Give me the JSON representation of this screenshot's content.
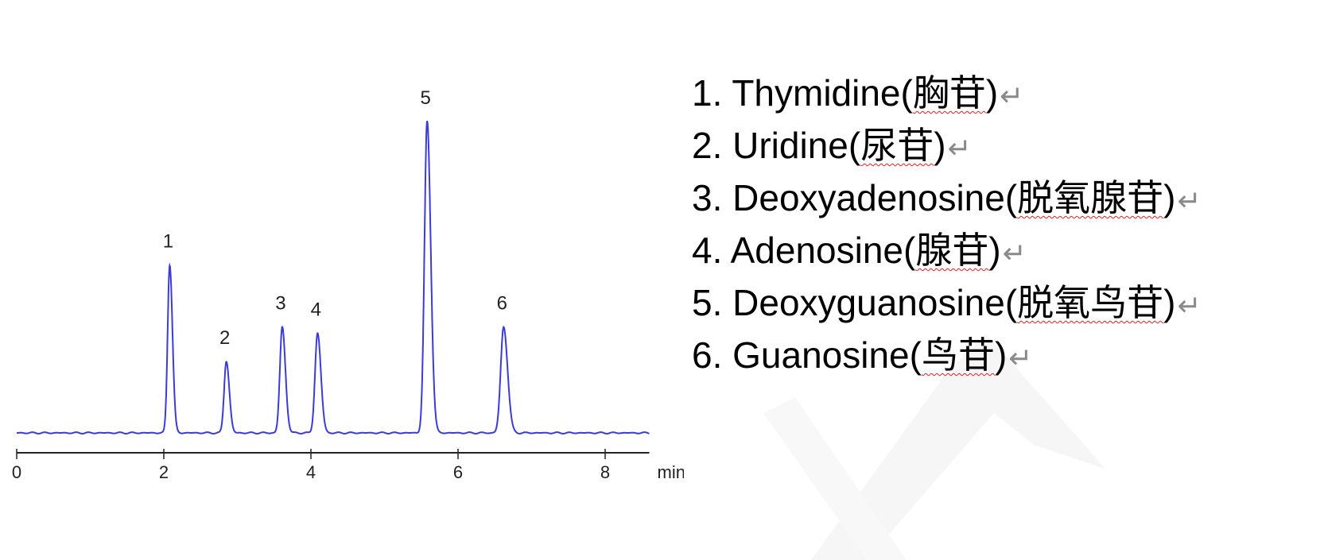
{
  "chart_data": {
    "type": "line",
    "title": "",
    "xlabel": "min",
    "ylabel": "",
    "xlim": [
      0,
      8.6
    ],
    "xticks": [
      0,
      2,
      4,
      6,
      8
    ],
    "grid": false,
    "y_axis_shown": false,
    "line_color": "#3b3bd6",
    "axis_color": "#222222",
    "peaks": [
      {
        "label": "1",
        "retention_time": 2.08,
        "relative_height": 54,
        "width_sigma": 0.028
      },
      {
        "label": "2",
        "retention_time": 2.85,
        "relative_height": 23,
        "width_sigma": 0.03
      },
      {
        "label": "3",
        "retention_time": 3.61,
        "relative_height": 34,
        "width_sigma": 0.032
      },
      {
        "label": "4",
        "retention_time": 4.09,
        "relative_height": 32,
        "width_sigma": 0.034
      },
      {
        "label": "5",
        "retention_time": 5.58,
        "relative_height": 100,
        "width_sigma": 0.036
      },
      {
        "label": "6",
        "retention_time": 6.62,
        "relative_height": 34,
        "width_sigma": 0.04
      }
    ]
  },
  "legend": {
    "return_mark": "↵",
    "underline_color": "#e02020",
    "items": [
      {
        "prefix": "1. Thymidine(",
        "cn": "胸苷",
        "suffix": ")"
      },
      {
        "prefix": "2. Uridine(",
        "cn": "尿苷",
        "suffix": ")"
      },
      {
        "prefix": "3. Deoxyadenosine(",
        "cn": "脱氧腺苷",
        "suffix": ")"
      },
      {
        "prefix": "4. Adenosine(",
        "cn": "腺苷",
        "suffix": ")"
      },
      {
        "prefix": "5. Deoxyguanosine(",
        "cn": "脱氧鸟苷",
        "suffix": ")"
      },
      {
        "prefix": "6. Guanosine(",
        "cn": "鸟苷",
        "suffix": ")"
      }
    ]
  }
}
